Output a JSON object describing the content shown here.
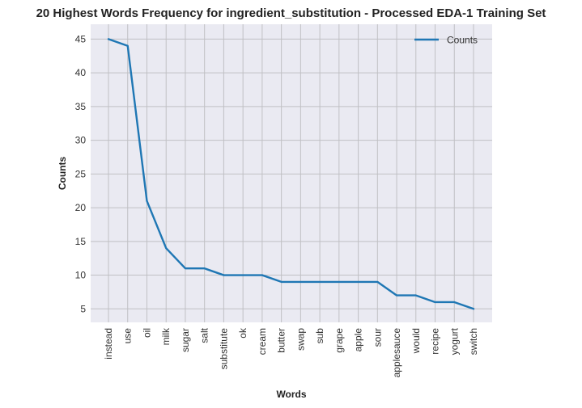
{
  "chart_data": {
    "type": "line",
    "title": "20 Highest Words Frequency for ingredient_substitution - Processed EDA-1 Training Set",
    "xlabel": "Words",
    "ylabel": "Counts",
    "categories": [
      "instead",
      "use",
      "oil",
      "milk",
      "sugar",
      "salt",
      "substitute",
      "ok",
      "cream",
      "butter",
      "swap",
      "sub",
      "grape",
      "apple",
      "sour",
      "applesauce",
      "would",
      "recipe",
      "yogurt",
      "switch"
    ],
    "series": [
      {
        "name": "Counts",
        "values": [
          45,
          44,
          21,
          14,
          11,
          11,
          10,
          10,
          10,
          9,
          9,
          9,
          9,
          9,
          9,
          7,
          7,
          6,
          6,
          5
        ],
        "color": "#1f77b4"
      }
    ],
    "yticks": [
      5,
      10,
      15,
      20,
      25,
      30,
      35,
      40,
      45
    ],
    "ylim": [
      3,
      47.2
    ],
    "grid": true,
    "legend": "top-right",
    "background": "#eaeaf2",
    "gridcolor": "#c0c0c4"
  }
}
